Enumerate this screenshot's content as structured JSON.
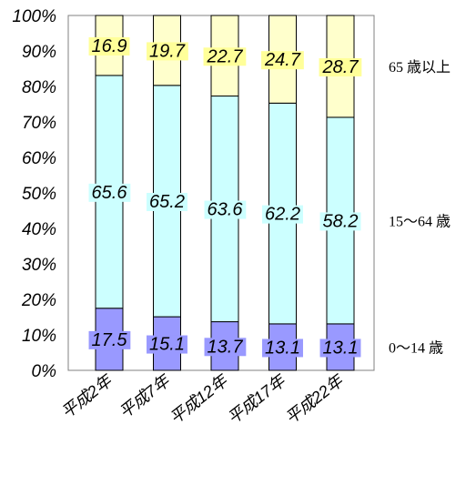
{
  "chart_data": {
    "type": "bar",
    "stacked": true,
    "percent": true,
    "categories": [
      "平成2年",
      "平成7年",
      "平成12年",
      "平成17年",
      "平成22年"
    ],
    "series": [
      {
        "name": "0～14 歳",
        "values": [
          17.5,
          15.1,
          13.7,
          13.1,
          13.1
        ],
        "color": "#9999ff",
        "label_bg": "#9999ff"
      },
      {
        "name": "15～64 歳",
        "values": [
          65.6,
          65.2,
          63.6,
          62.2,
          58.2
        ],
        "color": "#ccffff",
        "label_bg": "#ccffff"
      },
      {
        "name": "65 歳以上",
        "values": [
          16.9,
          19.7,
          22.7,
          24.7,
          28.7
        ],
        "color": "#ffffcc",
        "label_bg": "#ffff99"
      }
    ],
    "yticks": [
      "0%",
      "10%",
      "20%",
      "30%",
      "40%",
      "50%",
      "60%",
      "70%",
      "80%",
      "90%",
      "100%"
    ],
    "ylim": [
      0,
      100
    ],
    "grid": false,
    "legend_placement": "right"
  }
}
